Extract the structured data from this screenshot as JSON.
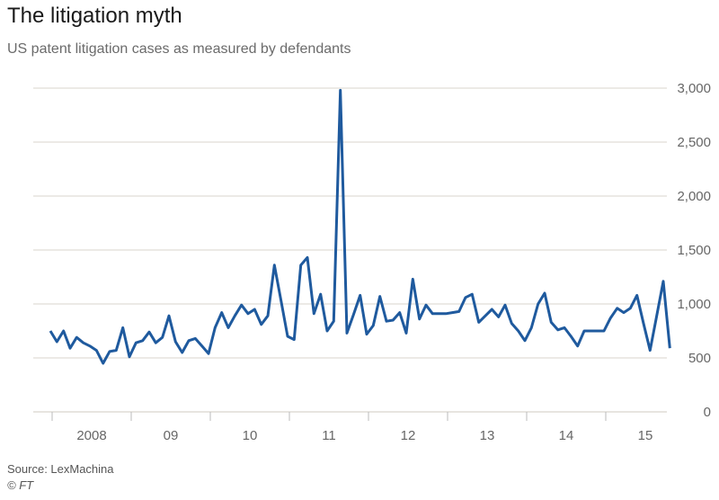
{
  "title": "The litigation myth",
  "subtitle": "US patent litigation cases as measured by defendants",
  "source": "Source: LexMachina",
  "copyright": "© FT",
  "colors": {
    "line": "#1f5a9e",
    "grid": "#d9d6cc",
    "text": "#666666"
  },
  "chart_data": {
    "type": "line",
    "title": "The litigation myth",
    "subtitle": "US patent litigation cases as measured by defendants",
    "xlabel": "",
    "ylabel": "",
    "frequency": "monthly",
    "x_start": "2008-01",
    "x_end": "2015-11",
    "x_tick_labels": [
      "2008",
      "09",
      "10",
      "11",
      "12",
      "13",
      "14",
      "15"
    ],
    "y_ticks": [
      0,
      500,
      1000,
      1500,
      2000,
      2500,
      3000
    ],
    "y_tick_labels": [
      "0",
      "500",
      "1,000",
      "1,500",
      "2,000",
      "2,500",
      "3,000"
    ],
    "ylim": [
      0,
      3000
    ],
    "grid": true,
    "y_axis_side": "right",
    "values": [
      750,
      650,
      750,
      590,
      690,
      640,
      610,
      570,
      450,
      560,
      570,
      780,
      510,
      640,
      660,
      740,
      640,
      690,
      890,
      650,
      550,
      660,
      680,
      610,
      540,
      780,
      920,
      780,
      890,
      990,
      910,
      950,
      810,
      890,
      1360,
      1030,
      700,
      670,
      1360,
      1430,
      910,
      1090,
      750,
      840,
      2980,
      730,
      900,
      1080,
      720,
      800,
      1070,
      840,
      850,
      920,
      730,
      1230,
      860,
      990,
      910,
      910,
      910,
      920,
      930,
      1060,
      1090,
      830,
      890,
      950,
      880,
      990,
      820,
      750,
      660,
      780,
      1000,
      1100,
      830,
      760,
      780,
      700,
      610,
      750,
      750,
      750,
      750,
      870,
      960,
      920,
      960,
      1080,
      820,
      570,
      890,
      1210,
      590
    ]
  }
}
